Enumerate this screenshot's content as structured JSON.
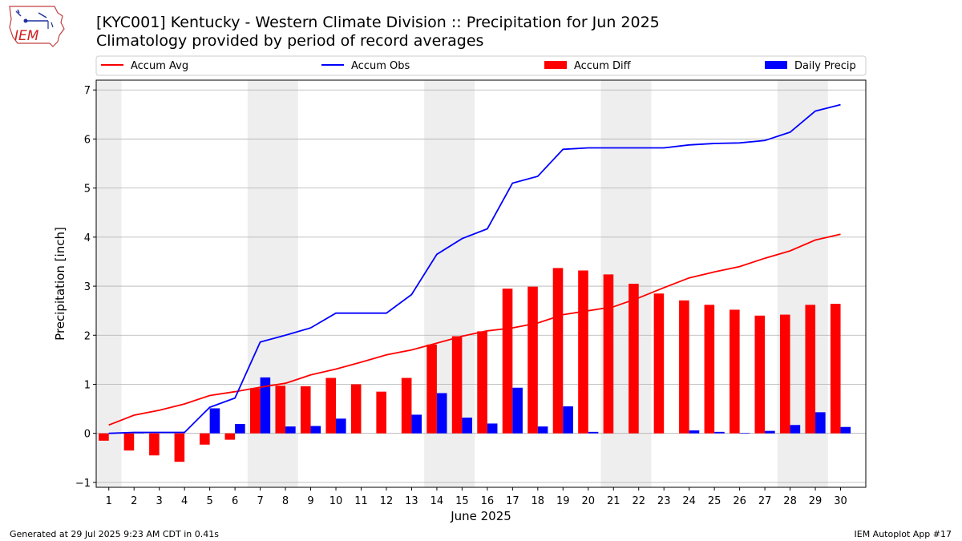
{
  "header": {
    "title_line1": "[KYC001] Kentucky - Western Climate Division :: Precipitation for Jun 2025",
    "title_line2": "Climatology provided by period of record averages",
    "logo_text": "IEM"
  },
  "footer": {
    "generated": "Generated at 29 Jul 2025 9:23 AM CDT in 0.41s",
    "app": "IEM Autoplot App #17"
  },
  "colors": {
    "avg": "#ff0000",
    "obs": "#0000ff",
    "diff": "#ff0000",
    "daily": "#0000ff",
    "weekend_shade": "#eeeeee",
    "grid": "#b0b0b0"
  },
  "chart_data": {
    "type": "bar",
    "xlabel": "June 2025",
    "ylabel": "Precipitation [inch]",
    "ylim": [
      -1.1,
      7.2
    ],
    "yticks": [
      "−1",
      "0",
      "1",
      "2",
      "3",
      "4",
      "5",
      "6",
      "7"
    ],
    "grid": "horizontal",
    "legend": "top",
    "categories": [
      "1",
      "2",
      "3",
      "4",
      "5",
      "6",
      "7",
      "8",
      "9",
      "10",
      "11",
      "12",
      "13",
      "14",
      "15",
      "16",
      "17",
      "18",
      "19",
      "20",
      "21",
      "22",
      "23",
      "24",
      "25",
      "26",
      "27",
      "28",
      "29",
      "30"
    ],
    "weekend_shading": [
      [
        1,
        1
      ],
      [
        7,
        8
      ],
      [
        14,
        15
      ],
      [
        21,
        22
      ],
      [
        28,
        29
      ]
    ],
    "series": [
      {
        "name": "Accum Avg",
        "kind": "line",
        "values": [
          0.17,
          0.37,
          0.47,
          0.6,
          0.77,
          0.85,
          0.94,
          1.02,
          1.19,
          1.31,
          1.45,
          1.6,
          1.7,
          1.84,
          1.98,
          2.09,
          2.15,
          2.25,
          2.42,
          2.5,
          2.58,
          2.76,
          2.97,
          3.17,
          3.29,
          3.4,
          3.57,
          3.72,
          3.94,
          4.06
        ]
      },
      {
        "name": "Accum Obs",
        "kind": "line",
        "values": [
          0.0,
          0.02,
          0.02,
          0.02,
          0.53,
          0.72,
          1.86,
          2.0,
          2.15,
          2.45,
          2.45,
          2.45,
          2.83,
          3.65,
          3.97,
          4.17,
          5.1,
          5.24,
          5.79,
          5.82,
          5.82,
          5.82,
          5.82,
          5.88,
          5.91,
          5.92,
          5.97,
          6.14,
          6.57,
          6.7
        ]
      },
      {
        "name": "Accum Diff",
        "kind": "bar",
        "values": [
          -0.15,
          -0.35,
          -0.45,
          -0.58,
          -0.23,
          -0.13,
          0.92,
          0.97,
          0.96,
          1.13,
          1.0,
          0.85,
          1.13,
          1.81,
          1.98,
          2.08,
          2.95,
          2.99,
          3.37,
          3.32,
          3.24,
          3.05,
          2.85,
          2.71,
          2.62,
          2.52,
          2.4,
          2.42,
          2.62,
          2.64
        ]
      },
      {
        "name": "Daily Precip",
        "kind": "bar",
        "values": [
          0.0,
          0.02,
          0.0,
          0.0,
          0.51,
          0.19,
          1.14,
          0.14,
          0.15,
          0.3,
          0.0,
          0.0,
          0.38,
          0.82,
          0.32,
          0.2,
          0.93,
          0.14,
          0.55,
          0.03,
          0.0,
          0.0,
          0.0,
          0.06,
          0.03,
          0.01,
          0.05,
          0.17,
          0.43,
          0.13
        ]
      }
    ]
  }
}
